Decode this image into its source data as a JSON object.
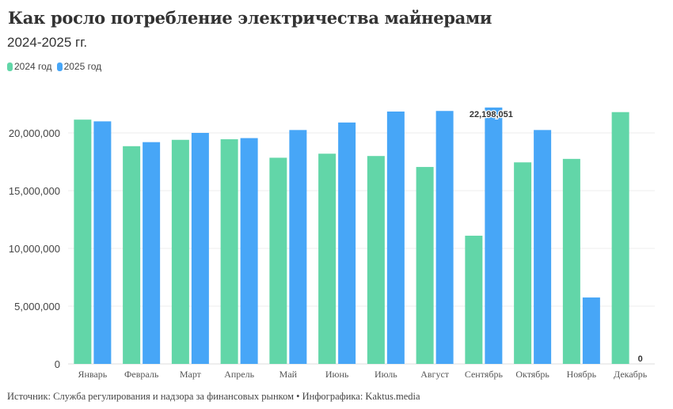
{
  "chart_data": {
    "type": "bar",
    "title": "Как росло потребление электричества майнерами",
    "subtitle": "2024-2025 гг.",
    "categories": [
      "Январь",
      "Февраль",
      "Март",
      "Апрель",
      "Май",
      "Июнь",
      "Июль",
      "Август",
      "Сентябрь",
      "Октябрь",
      "Ноябрь",
      "Декабрь"
    ],
    "series": [
      {
        "name": "2024 год",
        "color": "#62d6a8",
        "values": [
          21150000,
          18850000,
          19400000,
          19450000,
          17850000,
          18200000,
          18000000,
          17050000,
          11100000,
          17450000,
          17750000,
          21800000
        ]
      },
      {
        "name": "2025 год",
        "color": "#47a6f7",
        "values": [
          21000000,
          19200000,
          20000000,
          19550000,
          20250000,
          20900000,
          21850000,
          21900000,
          22198051,
          20250000,
          5750000,
          0
        ]
      }
    ],
    "yticks": [
      "0",
      "5,000,000",
      "10,000,000",
      "15,000,000",
      "20,000,000"
    ],
    "ylim": [
      0,
      25000000
    ],
    "grid": true,
    "legend": "top-left",
    "annotations": [
      "22,198,051",
      "0"
    ]
  },
  "source": "Источник: Служба регулирования и надзора за финансовых рынком • Инфографика: Kaktus.media"
}
